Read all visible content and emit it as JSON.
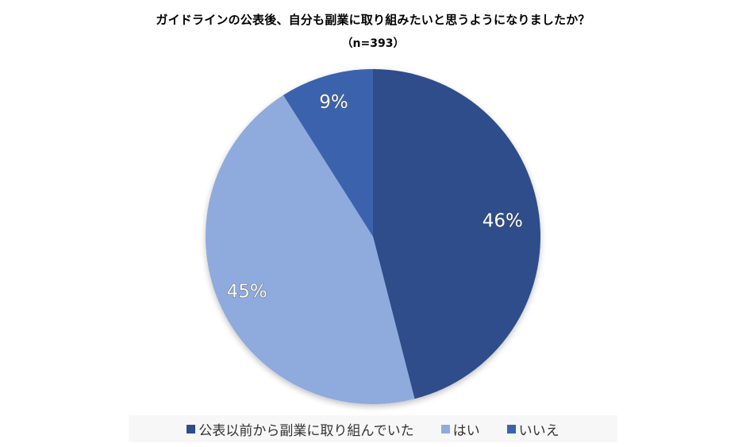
{
  "chart_data": {
    "type": "pie",
    "title": "ガイドラインの公表後、自分も副業に取り組みたいと思うようになりましたか？",
    "subtitle": "（n=393）",
    "categories": [
      "公表以前から副業に取り組んでいた",
      "はい",
      "いいえ"
    ],
    "values": [
      46,
      45,
      9
    ],
    "labels": [
      "46%",
      "45%",
      "9%"
    ],
    "colors": [
      "#2E4D8A",
      "#8FAADC",
      "#3A63AD"
    ],
    "start_angle": "12 o'clock, clockwise",
    "legend_position": "bottom"
  },
  "legend": {
    "items": [
      {
        "label": "公表以前から副業に取り組んでいた",
        "color": "#2E4D8A"
      },
      {
        "label": "はい",
        "color": "#8FAADC"
      },
      {
        "label": "いいえ",
        "color": "#3A63AD"
      }
    ]
  }
}
